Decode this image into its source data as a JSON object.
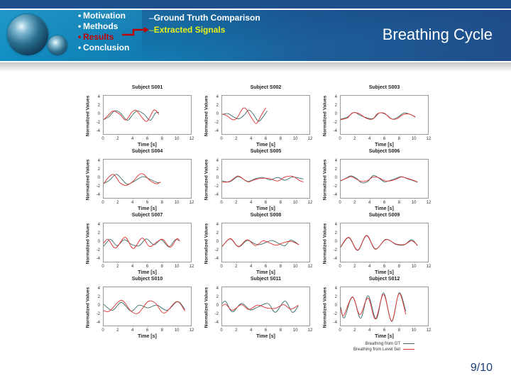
{
  "slide": {
    "title": "Breathing Cycle",
    "page": "9/10",
    "nav": [
      {
        "label": "Motivation",
        "active": false
      },
      {
        "label": "Methods",
        "active": false
      },
      {
        "label": "Results",
        "active": true
      },
      {
        "label": "Conclusion",
        "active": false
      }
    ],
    "subnav": [
      {
        "label": "Ground Truth Comparison",
        "active": false
      },
      {
        "label": "Extracted Signals",
        "active": true
      }
    ],
    "colors": {
      "banner": "#1478ae",
      "active_nav": "#c00000",
      "active_subnav": "#e6f01a",
      "page_num": "#1f3f7a"
    }
  },
  "legend": {
    "gt": {
      "label": "Breathing from GT",
      "color": "#3a6e66"
    },
    "ls": {
      "label": "Breathing from Level Set",
      "color": "#e03030"
    }
  },
  "axes": {
    "xlabel": "Time [s]",
    "ylabel": "Normalized Values",
    "xticks": [
      "0",
      "2",
      "4",
      "6",
      "8",
      "10",
      "12"
    ],
    "yticks": [
      "4",
      "2",
      "0",
      "-2",
      "-4"
    ],
    "xlim": [
      0,
      12
    ],
    "ylim": [
      -5,
      5
    ]
  },
  "chart_data": [
    {
      "type": "line",
      "title": "Subject S001",
      "xlabel": "Time [s]",
      "ylabel": "Normalized Values",
      "xlim": [
        0,
        12
      ],
      "ylim": [
        -5,
        5
      ],
      "series": [
        {
          "name": "Breathing from GT",
          "x": [
            0,
            0.7,
            1.5,
            2.3,
            3.2,
            4.0,
            4.6,
            5.5,
            6.3,
            7.0,
            7.5
          ],
          "y": [
            -1.0,
            -0.3,
            1.2,
            0.6,
            -1.2,
            0.4,
            1.2,
            0.3,
            -1.2,
            0.6,
            0.8
          ]
        },
        {
          "name": "Breathing from Level Set",
          "x": [
            0,
            0.6,
            1.3,
            2.2,
            3.0,
            3.8,
            4.4,
            5.2,
            5.9,
            6.8,
            7.5
          ],
          "y": [
            -1.0,
            0.0,
            1.2,
            0.3,
            -1.1,
            0.8,
            1.3,
            -0.5,
            -1.4,
            1.4,
            0.3
          ]
        }
      ]
    },
    {
      "type": "line",
      "title": "Subject S002",
      "xlabel": "Time [s]",
      "ylabel": "Normalized Values",
      "xlim": [
        0,
        12
      ],
      "ylim": [
        -5,
        5
      ],
      "series": [
        {
          "name": "Breathing from GT",
          "x": [
            0,
            0.8,
            1.6,
            2.3,
            3.0,
            3.6,
            4.2,
            4.9,
            5.5,
            6.1
          ],
          "y": [
            0.3,
            0.5,
            -0.4,
            -0.8,
            0.2,
            1.4,
            0.4,
            -1.4,
            -0.4,
            1.2
          ]
        },
        {
          "name": "Breathing from Level Set",
          "x": [
            0,
            0.6,
            1.4,
            2.0,
            2.8,
            3.3,
            3.9,
            4.6,
            5.2,
            5.9
          ],
          "y": [
            0.4,
            0.0,
            -1.0,
            -0.6,
            1.8,
            1.5,
            -0.3,
            -2.0,
            -0.2,
            2.0
          ]
        }
      ]
    },
    {
      "type": "line",
      "title": "Subject S003",
      "xlabel": "Time [s]",
      "ylabel": "Normalized Values",
      "xlim": [
        0,
        12
      ],
      "ylim": [
        -5,
        5
      ],
      "series": [
        {
          "name": "Breathing from GT",
          "x": [
            0,
            0.9,
            1.8,
            2.7,
            3.8,
            4.5,
            5.3,
            6.2,
            7.0,
            7.8,
            8.6,
            9.4,
            10.1
          ],
          "y": [
            -0.9,
            -0.4,
            0.8,
            0.0,
            -0.7,
            -0.6,
            0.7,
            0.2,
            -0.9,
            -0.3,
            0.7,
            0.3,
            -0.3
          ]
        },
        {
          "name": "Breathing from Level Set",
          "x": [
            0,
            0.9,
            1.6,
            2.5,
            3.4,
            4.3,
            5.0,
            5.9,
            6.8,
            7.6,
            8.5,
            9.3,
            10.1
          ],
          "y": [
            -1.0,
            -0.6,
            0.7,
            0.5,
            -0.6,
            -0.9,
            0.5,
            0.6,
            -0.8,
            -0.8,
            0.3,
            0.4,
            -0.4
          ]
        }
      ]
    },
    {
      "type": "line",
      "title": "Subject S004",
      "xlabel": "Time [s]",
      "ylabel": "Normalized Values",
      "xlim": [
        0,
        12
      ],
      "ylim": [
        -5,
        5
      ],
      "series": [
        {
          "name": "Breathing from GT",
          "x": [
            0,
            0.8,
            1.7,
            2.5,
            3.2,
            4.2,
            5.3,
            6.3,
            7.3,
            7.7
          ],
          "y": [
            -1.0,
            -0.2,
            1.3,
            0.0,
            -1.2,
            -0.4,
            0.7,
            0.0,
            -0.8,
            -0.7
          ]
        },
        {
          "name": "Breathing from Level Set",
          "x": [
            0,
            0.7,
            1.4,
            2.2,
            3.0,
            3.9,
            4.8,
            5.4,
            6.3,
            7.2,
            7.7
          ],
          "y": [
            -1.1,
            0.6,
            1.2,
            -0.8,
            -1.5,
            -0.6,
            1.2,
            1.3,
            -0.3,
            -1.1,
            -0.6
          ]
        }
      ]
    },
    {
      "type": "line",
      "title": "Subject S005",
      "xlabel": "Time [s]",
      "ylabel": "Normalized Values",
      "xlim": [
        0,
        12
      ],
      "ylim": [
        -5,
        5
      ],
      "series": [
        {
          "name": "Breathing from GT",
          "x": [
            0,
            1,
            2,
            2.5,
            3.5,
            4.5,
            5.5,
            6.5,
            7.5,
            8.5,
            9.5,
            10.5,
            11
          ],
          "y": [
            -0.4,
            -0.6,
            0.6,
            0.5,
            -0.5,
            0.2,
            0.5,
            -0.1,
            0.5,
            -0.2,
            0.6,
            0.3,
            0.1
          ]
        },
        {
          "name": "Breathing from Level Set",
          "x": [
            0,
            1,
            2,
            2.5,
            3.5,
            4.5,
            5.5,
            6.5,
            7.5,
            8.5,
            9.5,
            10.5,
            11
          ],
          "y": [
            -0.7,
            -0.5,
            0.8,
            0.6,
            -0.6,
            0.0,
            0.3,
            0.2,
            -0.4,
            0.6,
            0.8,
            -0.3,
            -0.6
          ]
        }
      ]
    },
    {
      "type": "line",
      "title": "Subject S006",
      "xlabel": "Time [s]",
      "ylabel": "Normalized Values",
      "xlim": [
        0,
        12
      ],
      "ylim": [
        -5,
        5
      ],
      "series": [
        {
          "name": "Breathing from GT",
          "x": [
            0,
            0.8,
            1.4,
            2.2,
            2.8,
            3.6,
            4.4,
            5.2,
            5.9,
            6.6,
            7.4,
            8.2,
            9.0,
            9.8,
            10.4
          ],
          "y": [
            -0.4,
            0.4,
            0.9,
            0.2,
            -0.8,
            -0.6,
            1.0,
            0.3,
            -0.6,
            -0.3,
            0.2,
            0.7,
            0.2,
            -0.3,
            -0.7
          ]
        },
        {
          "name": "Breathing from Level Set",
          "x": [
            0,
            0.8,
            1.4,
            2.2,
            2.8,
            3.6,
            4.4,
            5.2,
            5.9,
            6.6,
            7.4,
            8.2,
            9.0,
            9.8,
            10.4
          ],
          "y": [
            -0.3,
            0.3,
            0.7,
            0.0,
            -0.5,
            -0.3,
            0.6,
            0.4,
            -0.3,
            -0.4,
            0.0,
            0.6,
            0.3,
            -0.2,
            -0.6
          ]
        }
      ]
    },
    {
      "type": "line",
      "title": "Subject S007",
      "xlabel": "Time [s]",
      "ylabel": "Normalized Values",
      "xlim": [
        0,
        12
      ],
      "ylim": [
        -5,
        5
      ],
      "series": [
        {
          "name": "Breathing from GT",
          "x": [
            0,
            0.9,
            1.8,
            2.8,
            3.8,
            4.8,
            5.8,
            6.8,
            7.8,
            8.8,
            9.7,
            10.3
          ],
          "y": [
            -0.8,
            1.0,
            -0.6,
            0.9,
            -0.3,
            -0.6,
            1.1,
            -0.4,
            0.9,
            -0.9,
            0.9,
            0.6
          ]
        },
        {
          "name": "Breathing from Level Set",
          "x": [
            0,
            0.6,
            1.6,
            2.9,
            4.0,
            5.2,
            6.2,
            7.1,
            8.0,
            9.0,
            9.9,
            10.3
          ],
          "y": [
            0.0,
            1.0,
            -1.2,
            1.5,
            -1.3,
            1.3,
            -0.8,
            0.2,
            1.0,
            -1.0,
            1.1,
            0.5
          ]
        }
      ]
    },
    {
      "type": "line",
      "title": "Subject S008",
      "xlabel": "Time [s]",
      "ylabel": "Normalized Values",
      "xlim": [
        0,
        12
      ],
      "ylim": [
        -5,
        5
      ],
      "series": [
        {
          "name": "Breathing from GT",
          "x": [
            0,
            1.1,
            2.2,
            3.4,
            4.5,
            5.2,
            6.0,
            6.8,
            7.7,
            8.5,
            9.3,
            10.4
          ],
          "y": [
            -0.8,
            1.1,
            -0.9,
            0.7,
            -0.2,
            -0.3,
            0.3,
            0.7,
            -0.1,
            -0.6,
            0.8,
            -0.4
          ]
        },
        {
          "name": "Breathing from Level Set",
          "x": [
            0,
            1.1,
            2.2,
            3.4,
            4.5,
            5.5,
            6.3,
            7.3,
            8.2,
            9.3,
            10.4
          ],
          "y": [
            -0.8,
            1.2,
            -0.8,
            0.9,
            -0.6,
            0.6,
            0.2,
            -0.5,
            0.1,
            0.5,
            -0.4
          ]
        }
      ]
    },
    {
      "type": "line",
      "title": "Subject S009",
      "xlabel": "Time [s]",
      "ylabel": "Normalized Values",
      "xlim": [
        0,
        12
      ],
      "ylim": [
        -5,
        5
      ],
      "series": [
        {
          "name": "Breathing from GT",
          "x": [
            0,
            1.1,
            2.3,
            3.5,
            4.7,
            6.1,
            7.5,
            8.6,
            9.6,
            10.4
          ],
          "y": [
            -1.0,
            1.4,
            -1.8,
            1.9,
            -1.5,
            1.0,
            -0.3,
            -0.4,
            0.9,
            -0.6
          ]
        },
        {
          "name": "Breathing from Level Set",
          "x": [
            0,
            1.1,
            2.3,
            3.5,
            4.7,
            6.1,
            7.5,
            8.6,
            9.6,
            10.4
          ],
          "y": [
            -0.9,
            1.5,
            -1.7,
            2.0,
            -1.4,
            0.9,
            -0.2,
            -0.3,
            0.6,
            -0.5
          ]
        }
      ]
    },
    {
      "type": "line",
      "title": "Subject S010",
      "xlabel": "Time [s]",
      "ylabel": "Normalized Values",
      "xlim": [
        0,
        12
      ],
      "ylim": [
        -5,
        5
      ],
      "series": [
        {
          "name": "Breathing from GT",
          "x": [
            0,
            1.2,
            2.4,
            3.7,
            4.8,
            6.0,
            7.2,
            8.6,
            10.0,
            11.0
          ],
          "y": [
            0.7,
            -0.8,
            1.2,
            -1.0,
            0.5,
            -0.2,
            0.5,
            -0.8,
            1.4,
            -0.6
          ]
        },
        {
          "name": "Breathing from Level Set",
          "x": [
            0,
            0.8,
            2.4,
            3.7,
            4.7,
            6.0,
            7.0,
            8.2,
            9.9,
            11.0
          ],
          "y": [
            -0.9,
            -1.0,
            1.7,
            -1.0,
            -1.5,
            1.4,
            1.0,
            -1.5,
            1.4,
            -1.0
          ]
        }
      ]
    },
    {
      "type": "line",
      "title": "Subject S011",
      "xlabel": "Time [s]",
      "ylabel": "Normalized Values",
      "xlim": [
        0,
        12
      ],
      "ylim": [
        -5,
        5
      ],
      "series": [
        {
          "name": "Breathing from GT",
          "x": [
            0,
            0.5,
            1.4,
            2.6,
            3.8,
            4.8,
            6.2,
            7.2,
            8.5,
            9.5,
            10.3
          ],
          "y": [
            0.9,
            1.4,
            -1.2,
            0.9,
            -0.7,
            0.0,
            0.9,
            -1.3,
            1.5,
            -1.3,
            0.3
          ]
        },
        {
          "name": "Breathing from Level Set",
          "x": [
            0,
            0.5,
            1.4,
            2.6,
            3.6,
            4.8,
            6.0,
            7.2,
            8.3,
            9.3,
            10.3
          ],
          "y": [
            0.3,
            0.7,
            -0.8,
            0.6,
            -0.6,
            0.5,
            -0.2,
            -0.3,
            0.6,
            -0.5,
            0.5
          ]
        }
      ]
    },
    {
      "type": "line",
      "title": "Subject S012",
      "xlabel": "Time [s]",
      "ylabel": "Normalized Values",
      "xlim": [
        0,
        12
      ],
      "ylim": [
        -5,
        5
      ],
      "series": [
        {
          "name": "Breathing from GT",
          "x": [
            0,
            0.5,
            1.6,
            2.7,
            3.7,
            4.8,
            5.8,
            6.9,
            7.9,
            8.8
          ],
          "y": [
            0.0,
            -2.7,
            2.6,
            -2.8,
            2.9,
            -3.0,
            3.6,
            -3.6,
            3.6,
            -1.0
          ]
        },
        {
          "name": "Breathing from Level Set",
          "x": [
            0,
            0.4,
            1.6,
            2.6,
            3.7,
            4.7,
            5.8,
            6.9,
            7.9,
            8.8
          ],
          "y": [
            -0.3,
            -2.1,
            2.5,
            -1.9,
            2.3,
            -3.0,
            3.2,
            -3.5,
            3.4,
            -1.8
          ]
        }
      ]
    }
  ]
}
